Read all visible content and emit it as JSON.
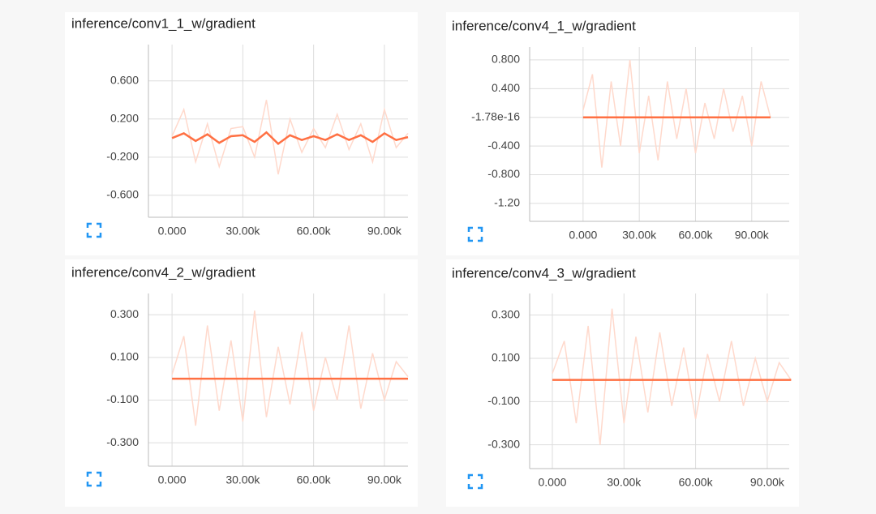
{
  "chart_data": [
    {
      "type": "line",
      "title": "inference/conv1_1_w/gradient",
      "x": [
        0,
        5000,
        10000,
        15000,
        20000,
        25000,
        30000,
        35000,
        40000,
        45000,
        50000,
        55000,
        60000,
        65000,
        70000,
        75000,
        80000,
        85000,
        90000,
        95000,
        100000
      ],
      "series": [
        {
          "color": "#ffd9cc",
          "values": [
            0.02,
            0.3,
            -0.25,
            0.15,
            -0.3,
            0.1,
            0.12,
            -0.2,
            0.4,
            -0.38,
            0.2,
            -0.15,
            0.1,
            -0.1,
            0.25,
            -0.12,
            0.15,
            -0.25,
            0.3,
            -0.1,
            0.05
          ]
        },
        {
          "color": "#ff7043",
          "values": [
            0,
            0.05,
            -0.03,
            0.04,
            -0.05,
            0.02,
            0.03,
            -0.04,
            0.06,
            -0.06,
            0.03,
            -0.02,
            0.02,
            -0.02,
            0.04,
            -0.02,
            0.03,
            -0.04,
            0.05,
            -0.02,
            0.01
          ]
        }
      ],
      "xlim": [
        -10000,
        100000
      ],
      "xticks": [
        {
          "value": 0,
          "label": "0.000"
        },
        {
          "value": 30000,
          "label": "30.00k"
        },
        {
          "value": 60000,
          "label": "60.00k"
        },
        {
          "value": 90000,
          "label": "90.00k"
        }
      ],
      "ylim": [
        -0.83,
        0.98
      ],
      "yticks": [
        {
          "value": 0.6,
          "label": "0.600"
        },
        {
          "value": 0.2,
          "label": "0.200"
        },
        {
          "value": -0.2,
          "label": "-0.200"
        },
        {
          "value": -0.6,
          "label": "-0.600"
        }
      ],
      "grid": true
    },
    {
      "type": "line",
      "title": "inference/conv4_1_w/gradient",
      "x": [
        0,
        5000,
        10000,
        15000,
        20000,
        25000,
        30000,
        35000,
        40000,
        45000,
        50000,
        55000,
        60000,
        65000,
        70000,
        75000,
        80000,
        85000,
        90000,
        95000,
        100000
      ],
      "series": [
        {
          "color": "#ffd9cc",
          "values": [
            0.1,
            0.6,
            -0.7,
            0.5,
            -0.4,
            0.8,
            -0.5,
            0.3,
            -0.6,
            0.5,
            -0.3,
            0.4,
            -0.5,
            0.2,
            -0.3,
            0.4,
            -0.2,
            0.3,
            -0.4,
            0.5,
            0
          ]
        },
        {
          "color": "#ff7043",
          "values": [
            0,
            0,
            0,
            0,
            0,
            0,
            0,
            0,
            0,
            0,
            0,
            0,
            0,
            0,
            0,
            0,
            0,
            0,
            0,
            0,
            0
          ]
        }
      ],
      "xlim": [
        -28500,
        110000
      ],
      "xticks": [
        {
          "value": 0,
          "label": "0.000"
        },
        {
          "value": 30000,
          "label": "30.00k"
        },
        {
          "value": 60000,
          "label": "60.00k"
        },
        {
          "value": 90000,
          "label": "90.00k"
        }
      ],
      "ylim": [
        -1.45,
        0.98
      ],
      "yticks": [
        {
          "value": 0.8,
          "label": "0.800"
        },
        {
          "value": 0.4,
          "label": "0.400"
        },
        -1.78e-16,
        {
          "value": -0.4,
          "label": "-0.400"
        },
        {
          "value": -0.8,
          "label": "-0.800"
        },
        {
          "value": -1.2,
          "label": "-1.20"
        }
      ],
      "grid": true
    },
    {
      "type": "line",
      "title": "inference/conv4_2_w/gradient",
      "x": [
        0,
        5000,
        10000,
        15000,
        20000,
        25000,
        30000,
        35000,
        40000,
        45000,
        50000,
        55000,
        60000,
        65000,
        70000,
        75000,
        80000,
        85000,
        90000,
        95000,
        100000
      ],
      "series": [
        {
          "color": "#ffd9cc",
          "values": [
            0.02,
            0.2,
            -0.22,
            0.25,
            -0.15,
            0.18,
            -0.2,
            0.32,
            -0.18,
            0.15,
            -0.12,
            0.22,
            -0.15,
            0.1,
            -0.1,
            0.25,
            -0.14,
            0.12,
            -0.1,
            0.08,
            0.01
          ]
        },
        {
          "color": "#ff7043",
          "values": [
            0,
            0,
            0,
            0,
            0,
            0,
            0,
            0,
            0,
            0,
            0,
            0,
            0,
            0,
            0,
            0,
            0,
            0,
            0,
            0,
            0
          ]
        }
      ],
      "xlim": [
        -10000,
        100000
      ],
      "xticks": [
        {
          "value": 0,
          "label": "0.000"
        },
        {
          "value": 30000,
          "label": "30.00k"
        },
        {
          "value": 60000,
          "label": "60.00k"
        },
        {
          "value": 90000,
          "label": "90.00k"
        }
      ],
      "ylim": [
        -0.41,
        0.4
      ],
      "yticks": [
        {
          "value": 0.3,
          "label": "0.300"
        },
        {
          "value": 0.1,
          "label": "0.100"
        },
        {
          "value": -0.1,
          "label": "-0.100"
        },
        {
          "value": -0.3,
          "label": "-0.300"
        }
      ],
      "grid": true
    },
    {
      "type": "line",
      "title": "inference/conv4_3_w/gradient",
      "x": [
        0,
        5000,
        10000,
        15000,
        20000,
        25000,
        30000,
        35000,
        40000,
        45000,
        50000,
        55000,
        60000,
        65000,
        70000,
        75000,
        80000,
        85000,
        90000,
        95000,
        100000
      ],
      "series": [
        {
          "color": "#ffd9cc",
          "values": [
            0.03,
            0.18,
            -0.2,
            0.25,
            -0.3,
            0.33,
            -0.2,
            0.2,
            -0.15,
            0.22,
            -0.12,
            0.15,
            -0.18,
            0.12,
            -0.1,
            0.18,
            -0.12,
            0.1,
            -0.1,
            0.08,
            0
          ]
        },
        {
          "color": "#ff7043",
          "values": [
            0,
            0,
            0,
            0,
            0,
            0,
            0,
            0,
            0,
            0,
            0,
            0,
            0,
            0,
            0,
            0,
            0,
            0,
            0,
            0,
            0
          ]
        }
      ],
      "xlim": [
        -9500,
        99200
      ],
      "xticks": [
        {
          "value": 0,
          "label": "0.000"
        },
        {
          "value": 30000,
          "label": "30.00k"
        },
        {
          "value": 60000,
          "label": "60.00k"
        },
        {
          "value": 90000,
          "label": "90.00k"
        }
      ],
      "ylim": [
        -0.41,
        0.4
      ],
      "yticks": [
        {
          "value": 0.3,
          "label": "0.300"
        },
        {
          "value": 0.1,
          "label": "0.100"
        },
        {
          "value": -0.1,
          "label": "-0.100"
        },
        {
          "value": -0.3,
          "label": "-0.300"
        }
      ],
      "grid": true
    }
  ]
}
